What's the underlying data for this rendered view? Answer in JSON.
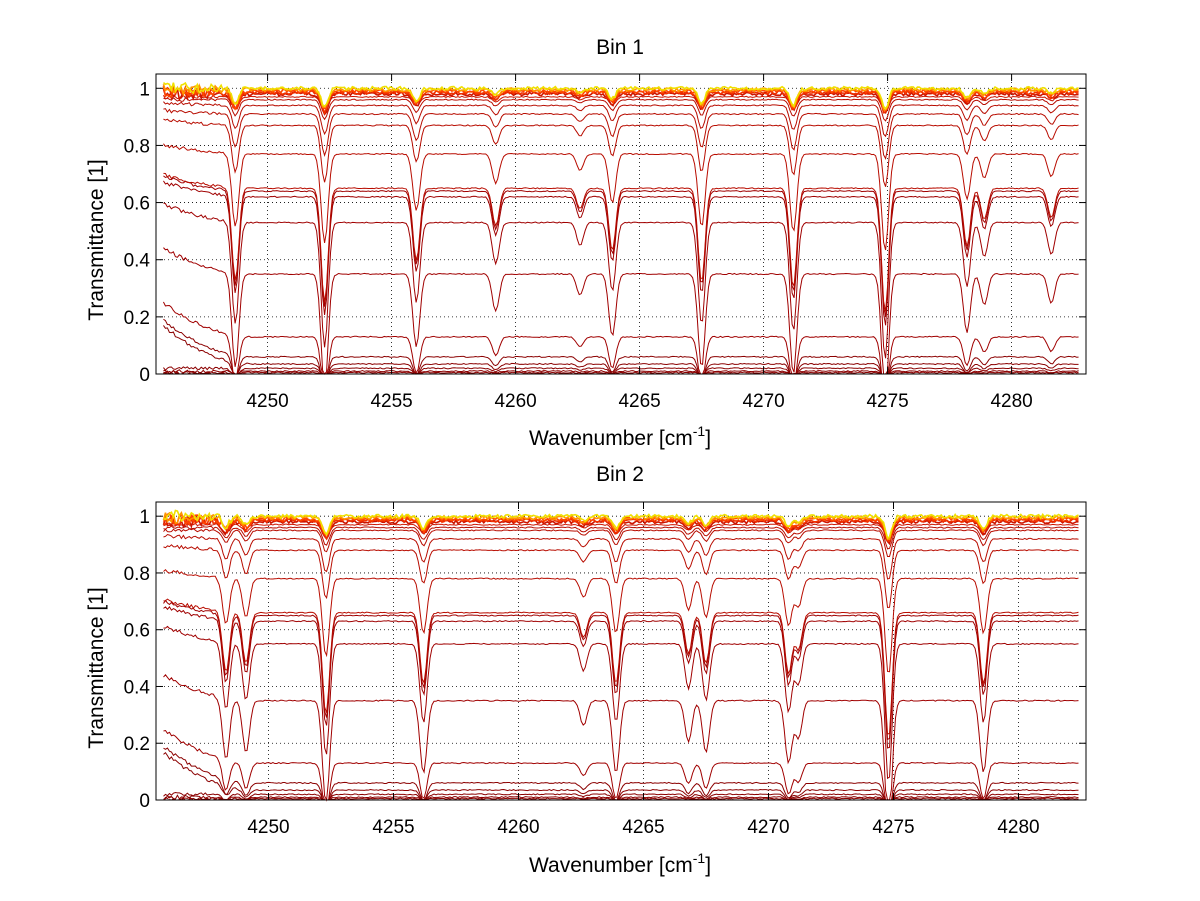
{
  "chart_data": [
    {
      "type": "line",
      "title": "Bin 1",
      "xlabel": "Wavenumber [cm",
      "xlabel_superscript": "-1",
      "xlabel_suffix": "]",
      "ylabel": "Transmittance [1]",
      "xlim": [
        4245.5,
        4283
      ],
      "ylim": [
        0,
        1.05
      ],
      "xticks": [
        4250,
        4255,
        4260,
        4265,
        4270,
        4275,
        4280
      ],
      "yticks": [
        0,
        0.2,
        0.4,
        0.6,
        0.8,
        1
      ],
      "ytick_labels": [
        "0",
        "0.2",
        "0.4",
        "0.6",
        "0.8",
        "1"
      ],
      "grid": true,
      "grid_style": "dotted",
      "series_colormap": [
        "#8b0000",
        "#a00000",
        "#b80c00",
        "#cc1400",
        "#e02000",
        "#f03000",
        "#ff4500",
        "#ff6a00",
        "#ff9500",
        "#ffc000",
        "#f0e000"
      ],
      "baselines": [
        0.0,
        0.005,
        0.01,
        0.02,
        0.035,
        0.06,
        0.13,
        0.35,
        0.53,
        0.62,
        0.64,
        0.65,
        0.77,
        0.87,
        0.91,
        0.94,
        0.96,
        0.97,
        0.98,
        0.985,
        0.99,
        0.995,
        1.0
      ],
      "absorption_lines": [
        {
          "x": 4248.7,
          "depth": 0.45
        },
        {
          "x": 4252.3,
          "depth": 0.55
        },
        {
          "x": 4256.0,
          "depth": 0.35
        },
        {
          "x": 4259.2,
          "depth": 0.18
        },
        {
          "x": 4262.6,
          "depth": 0.1
        },
        {
          "x": 4263.9,
          "depth": 0.3
        },
        {
          "x": 4267.5,
          "depth": 0.45
        },
        {
          "x": 4271.2,
          "depth": 0.48
        },
        {
          "x": 4274.9,
          "depth": 0.6
        },
        {
          "x": 4278.2,
          "depth": 0.28
        },
        {
          "x": 4278.9,
          "depth": 0.15
        },
        {
          "x": 4281.6,
          "depth": 0.14
        }
      ]
    },
    {
      "type": "line",
      "title": "Bin 2",
      "xlabel": "Wavenumber [cm",
      "xlabel_superscript": "-1",
      "xlabel_suffix": "]",
      "ylabel": "Transmittance [1]",
      "xlim": [
        4245.5,
        4282.7
      ],
      "ylim": [
        0,
        1.05
      ],
      "xticks": [
        4250,
        4255,
        4260,
        4265,
        4270,
        4275,
        4280
      ],
      "yticks": [
        0,
        0.2,
        0.4,
        0.6,
        0.8,
        1
      ],
      "ytick_labels": [
        "0",
        "0.2",
        "0.4",
        "0.6",
        "0.8",
        "1"
      ],
      "grid": true,
      "grid_style": "dotted",
      "series_colormap": [
        "#8b0000",
        "#a00000",
        "#b80c00",
        "#cc1400",
        "#e02000",
        "#f03000",
        "#ff4500",
        "#ff6a00",
        "#ff9500",
        "#ffc000",
        "#f0e000"
      ],
      "baselines": [
        0.0,
        0.005,
        0.01,
        0.02,
        0.035,
        0.06,
        0.13,
        0.35,
        0.55,
        0.63,
        0.65,
        0.66,
        0.78,
        0.88,
        0.92,
        0.95,
        0.96,
        0.97,
        0.98,
        0.985,
        0.99,
        0.995,
        1.0
      ],
      "absorption_lines": [
        {
          "x": 4248.3,
          "depth": 0.3
        },
        {
          "x": 4249.1,
          "depth": 0.25
        },
        {
          "x": 4252.3,
          "depth": 0.5
        },
        {
          "x": 4256.2,
          "depth": 0.35
        },
        {
          "x": 4262.6,
          "depth": 0.12
        },
        {
          "x": 4263.9,
          "depth": 0.35
        },
        {
          "x": 4266.8,
          "depth": 0.2
        },
        {
          "x": 4267.5,
          "depth": 0.25
        },
        {
          "x": 4270.8,
          "depth": 0.3
        },
        {
          "x": 4271.2,
          "depth": 0.18
        },
        {
          "x": 4274.8,
          "depth": 0.62
        },
        {
          "x": 4278.6,
          "depth": 0.35
        }
      ]
    }
  ]
}
